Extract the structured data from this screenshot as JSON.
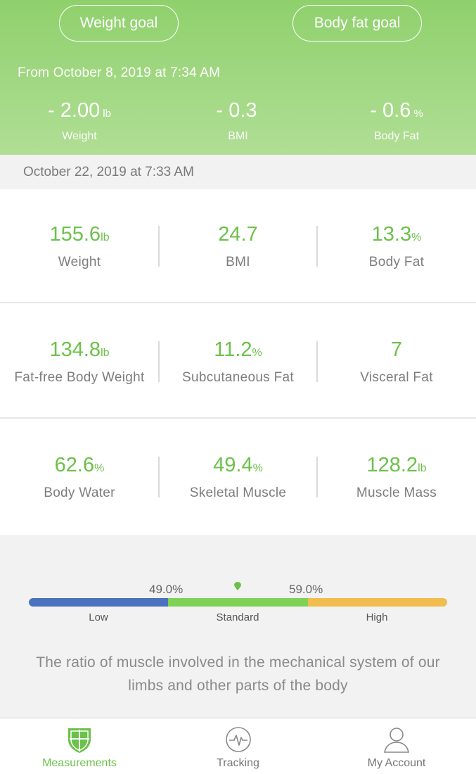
{
  "header": {
    "weight_goal_label": "Weight goal",
    "body_fat_goal_label": "Body fat goal",
    "from_text": "From October 8, 2019 at 7:34 AM",
    "deltas": [
      {
        "value": "- 2.00",
        "unit": "lb",
        "label": "Weight"
      },
      {
        "value": "- 0.3",
        "unit": "",
        "label": "BMI"
      },
      {
        "value": "- 0.6",
        "unit": "%",
        "label": "Body Fat"
      }
    ]
  },
  "date_bar": {
    "text": "October 22, 2019 at 7:33 AM"
  },
  "metrics": [
    [
      {
        "value": "155.6",
        "unit": "lb",
        "label": "Weight"
      },
      {
        "value": "24.7",
        "unit": "",
        "label": "BMI"
      },
      {
        "value": "13.3",
        "unit": "%",
        "label": "Body Fat"
      }
    ],
    [
      {
        "value": "134.8",
        "unit": "lb",
        "label": "Fat-free Body Weight"
      },
      {
        "value": "11.2",
        "unit": "%",
        "label": "Subcutaneous Fat"
      },
      {
        "value": "7",
        "unit": "",
        "label": "Visceral Fat"
      }
    ],
    [
      {
        "value": "62.6",
        "unit": "%",
        "label": "Body Water"
      },
      {
        "value": "49.4",
        "unit": "%",
        "label": "Skeletal Muscle"
      },
      {
        "value": "128.2",
        "unit": "lb",
        "label": "Muscle Mass"
      }
    ]
  ],
  "detail": {
    "thresholds": [
      "49.0%",
      "59.0%"
    ],
    "bands": [
      "Low",
      "Standard",
      "High"
    ],
    "band_colors": [
      "#4a72bf",
      "#7fd256",
      "#f0bd4e"
    ],
    "band_fractions": [
      0.333,
      0.335,
      0.332
    ],
    "marker_value_percent": 49.4,
    "description": "The ratio of muscle involved in the mechanical system of our limbs and other parts of the body"
  },
  "tabs": [
    {
      "label": "Measurements",
      "icon": "shield-icon",
      "active": true
    },
    {
      "label": "Tracking",
      "icon": "heartbeat-icon",
      "active": false
    },
    {
      "label": "My Account",
      "icon": "person-icon",
      "active": false
    }
  ],
  "colors": {
    "accent_green": "#6cc14a",
    "header_green": "#9bd47b"
  }
}
